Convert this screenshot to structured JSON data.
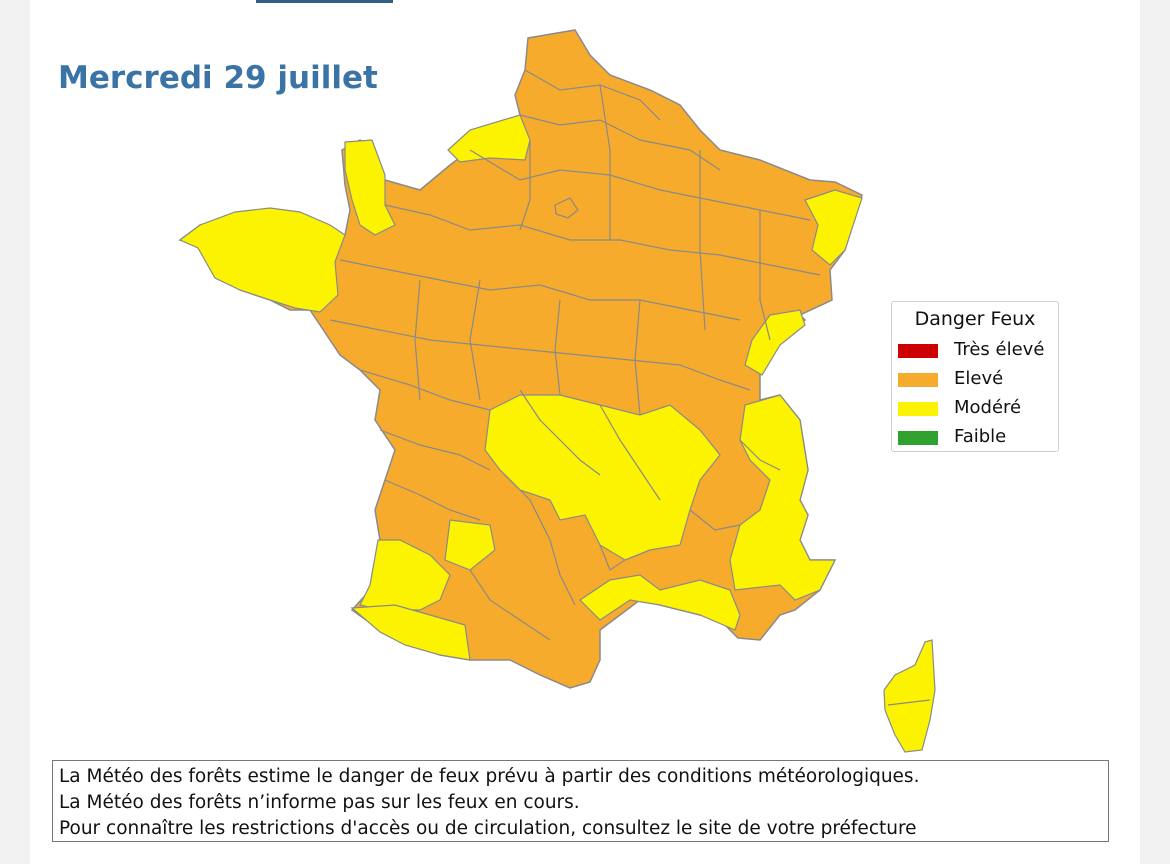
{
  "title": "Mercredi 29 juillet",
  "legend": {
    "title": "Danger Feux",
    "items": [
      {
        "label": "Très élevé",
        "color": "#cc0000"
      },
      {
        "label": "Elevé",
        "color": "#f7ab2c"
      },
      {
        "label": "Modéré",
        "color": "#fbf300"
      },
      {
        "label": "Faible",
        "color": "#2ea12e"
      }
    ]
  },
  "notice": {
    "line1": "La Météo des forêts estime le danger de feux prévu à partir des conditions météorologiques.",
    "line2": "La Météo des forêts n’informe pas sur les feux en cours.",
    "line3": "Pour connaître les restrictions d'accès ou de circulation, consultez le site de votre préfecture"
  },
  "map": {
    "regions": [
      {
        "name": "north-east",
        "level": "Elevé"
      },
      {
        "name": "normandy-coast",
        "level": "Modéré"
      },
      {
        "name": "cotentin",
        "level": "Modéré"
      },
      {
        "name": "brittany",
        "level": "Modéré"
      },
      {
        "name": "alsace",
        "level": "Modéré"
      },
      {
        "name": "jura",
        "level": "Modéré"
      },
      {
        "name": "massif-central",
        "level": "Modéré"
      },
      {
        "name": "alps",
        "level": "Modéré"
      },
      {
        "name": "landes",
        "level": "Modéré"
      },
      {
        "name": "south-west",
        "level": "Modéré"
      },
      {
        "name": "provence-coast",
        "level": "Modéré"
      },
      {
        "name": "corsica",
        "level": "Modéré"
      }
    ]
  }
}
